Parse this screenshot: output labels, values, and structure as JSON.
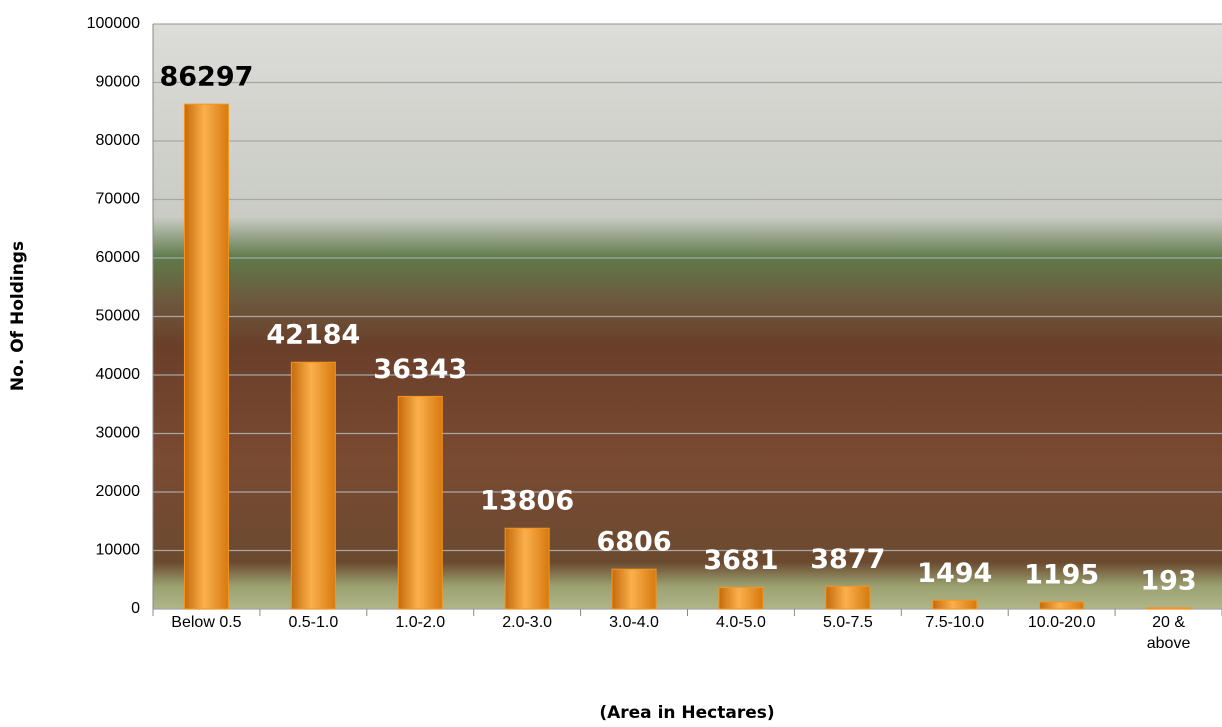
{
  "chart_data": {
    "type": "bar",
    "categories": [
      "Below 0.5",
      "0.5-1.0",
      "1.0-2.0",
      "2.0-3.0",
      "3.0-4.0",
      "4.0-5.0",
      "5.0-7.5",
      "7.5-10.0",
      "10.0-20.0",
      "20 & above"
    ],
    "values": [
      86297,
      42184,
      36343,
      13806,
      6806,
      3681,
      3877,
      1494,
      1195,
      193
    ],
    "color": "#f7941d",
    "x_label": "(Area in Hectares)",
    "y_label": "No. Of Holdings",
    "ylim": [
      0,
      100000
    ],
    "yticks": [
      0,
      10000,
      20000,
      30000,
      40000,
      50000,
      60000,
      70000,
      80000,
      90000,
      100000
    ],
    "grid": true
  }
}
